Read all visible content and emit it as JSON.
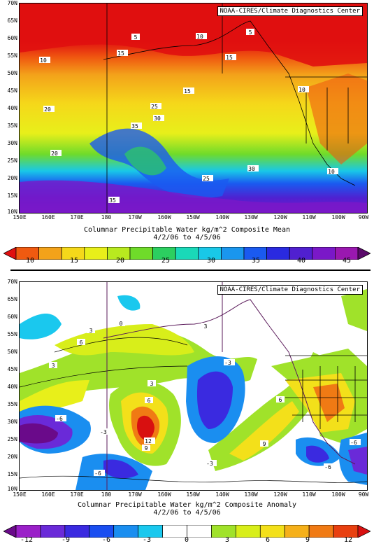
{
  "credit": "NOAA-CIRES/Climate Diagnostics Center",
  "lat_labels": [
    "70N",
    "65N",
    "60N",
    "55N",
    "50N",
    "45N",
    "40N",
    "35N",
    "30N",
    "25N",
    "20N",
    "15N",
    "10N"
  ],
  "lon_labels": [
    "150E",
    "160E",
    "170E",
    "180",
    "170W",
    "160W",
    "150W",
    "140W",
    "130W",
    "120W",
    "110W",
    "100W",
    "90W"
  ],
  "top": {
    "title": "Columnar Precipitable Water kg/m^2 Composite Mean",
    "dates": "4/2/06   to 4/5/06",
    "colorbar_ticks": [
      "10",
      "15",
      "20",
      "25",
      "30",
      "35",
      "40",
      "45"
    ],
    "colorbar_colors": [
      "#e01010",
      "#f05a10",
      "#f3a21a",
      "#f5d81a",
      "#e8ef1a",
      "#b8ea1f",
      "#6fdb2a",
      "#2ccf60",
      "#1ad9b8",
      "#19c8e8",
      "#1a96ee",
      "#1a5af0",
      "#2a2ae0",
      "#5020d0",
      "#7a18c8",
      "#9a18b0",
      "#5a0a6a"
    ],
    "contour_labels": [
      "5",
      "5",
      "10",
      "10",
      "15",
      "15",
      "20",
      "25",
      "30",
      "35",
      "20",
      "25",
      "15",
      "10",
      "30",
      "35",
      "10"
    ]
  },
  "bottom": {
    "title": "Columnar Precipitable Water kg/m^2 Composite Anomaly",
    "dates": "4/2/06   to 4/5/06",
    "colorbar_ticks": [
      "-12",
      "-9",
      "-6",
      "-3",
      "0",
      "3",
      "6",
      "9",
      "12"
    ],
    "colorbar_colors": [
      "#6a0a8a",
      "#9a20c8",
      "#6a2ad8",
      "#3a2ae0",
      "#1a4ef0",
      "#1a8ef0",
      "#1ac8ee",
      "#ffffff",
      "#ffffff",
      "#a0e22a",
      "#d8ee1a",
      "#f3e01a",
      "#f5b01a",
      "#f07a14",
      "#e84010",
      "#d81010"
    ],
    "contour_labels": [
      "3",
      "6",
      "3",
      "12",
      "9",
      "6",
      "3",
      "-3",
      "-6",
      "-3",
      "3",
      "6",
      "9",
      "-6",
      "-3",
      "-6",
      "-6",
      "0"
    ]
  }
}
